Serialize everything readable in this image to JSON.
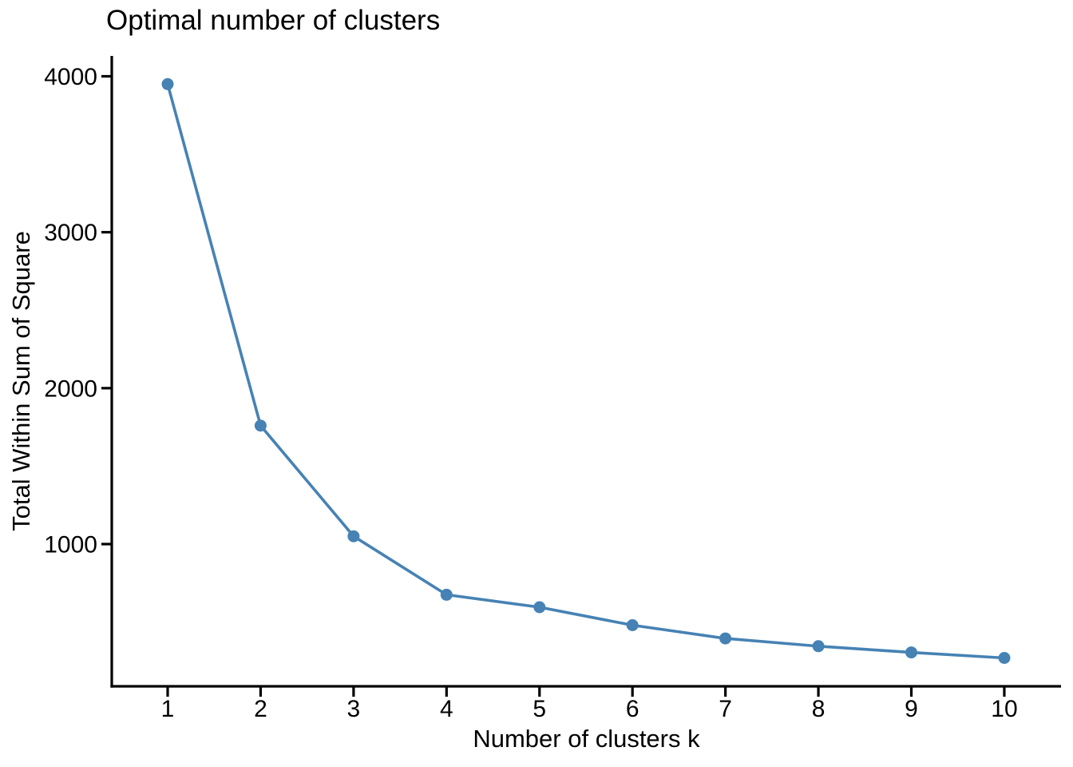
{
  "chart_data": {
    "type": "line",
    "title": "Optimal number of clusters",
    "xlabel": "Number of clusters k",
    "ylabel": "Total Within Sum of Square",
    "series": [
      {
        "name": "total-within-sum-of-square",
        "x": [
          1,
          2,
          3,
          4,
          5,
          6,
          7,
          8,
          9,
          10
        ],
        "values": [
          3950,
          1760,
          1050,
          675,
          595,
          480,
          395,
          345,
          305,
          270
        ]
      }
    ],
    "x_ticks": [
      {
        "value": 1,
        "label": "1"
      },
      {
        "value": 2,
        "label": "2"
      },
      {
        "value": 3,
        "label": "3"
      },
      {
        "value": 4,
        "label": "4"
      },
      {
        "value": 5,
        "label": "5"
      },
      {
        "value": 6,
        "label": "6"
      },
      {
        "value": 7,
        "label": "7"
      },
      {
        "value": 8,
        "label": "8"
      },
      {
        "value": 9,
        "label": "9"
      },
      {
        "value": 10,
        "label": "10"
      }
    ],
    "y_ticks": [
      {
        "value": 1000,
        "label": "1000"
      },
      {
        "value": 2000,
        "label": "2000"
      },
      {
        "value": 3000,
        "label": "3000"
      },
      {
        "value": 4000,
        "label": "4000"
      }
    ],
    "xlim": [
      0.4,
      10.6
    ],
    "ylim": [
      90,
      4130
    ],
    "grid": false,
    "legend": "none",
    "marker": "circle",
    "colors": {
      "line": "#4682B4",
      "point": "#4682B4",
      "axis": "#000000",
      "text": "#000000",
      "background": "#ffffff"
    }
  }
}
